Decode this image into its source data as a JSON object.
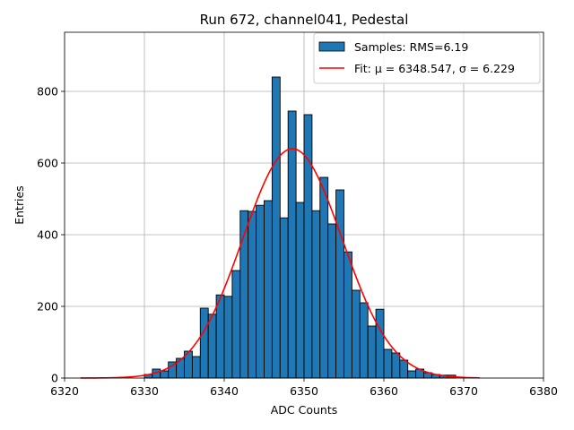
{
  "chart_data": {
    "type": "bar",
    "title": "Run 672, channel041, Pedestal",
    "xlabel": "ADC Counts",
    "ylabel": "Entries",
    "xlim": [
      6320,
      6380
    ],
    "ylim": [
      0,
      965
    ],
    "xticks": [
      6320,
      6330,
      6340,
      6350,
      6360,
      6370,
      6380
    ],
    "yticks": [
      0,
      200,
      400,
      600,
      800
    ],
    "grid": true,
    "legend_position": "top-right",
    "bar_color": "#1f77b4",
    "fit_color": "#ff0000",
    "histogram": {
      "name": "Samples: RMS=6.19",
      "bin_width": 1,
      "bins": [
        {
          "x": 6330,
          "y": 10
        },
        {
          "x": 6331,
          "y": 25
        },
        {
          "x": 6332,
          "y": 20
        },
        {
          "x": 6333,
          "y": 45
        },
        {
          "x": 6334,
          "y": 55
        },
        {
          "x": 6335,
          "y": 75
        },
        {
          "x": 6336,
          "y": 60
        },
        {
          "x": 6337,
          "y": 195
        },
        {
          "x": 6338,
          "y": 178
        },
        {
          "x": 6339,
          "y": 232
        },
        {
          "x": 6340,
          "y": 228
        },
        {
          "x": 6341,
          "y": 300
        },
        {
          "x": 6342,
          "y": 467
        },
        {
          "x": 6343,
          "y": 465
        },
        {
          "x": 6344,
          "y": 482
        },
        {
          "x": 6345,
          "y": 495
        },
        {
          "x": 6346,
          "y": 840
        },
        {
          "x": 6347,
          "y": 447
        },
        {
          "x": 6348,
          "y": 745
        },
        {
          "x": 6349,
          "y": 490
        },
        {
          "x": 6350,
          "y": 735
        },
        {
          "x": 6351,
          "y": 467
        },
        {
          "x": 6352,
          "y": 560
        },
        {
          "x": 6353,
          "y": 430
        },
        {
          "x": 6354,
          "y": 525
        },
        {
          "x": 6355,
          "y": 352
        },
        {
          "x": 6356,
          "y": 245
        },
        {
          "x": 6357,
          "y": 210
        },
        {
          "x": 6358,
          "y": 145
        },
        {
          "x": 6359,
          "y": 192
        },
        {
          "x": 6360,
          "y": 80
        },
        {
          "x": 6361,
          "y": 70
        },
        {
          "x": 6362,
          "y": 50
        },
        {
          "x": 6363,
          "y": 20
        },
        {
          "x": 6364,
          "y": 25
        },
        {
          "x": 6365,
          "y": 15
        },
        {
          "x": 6366,
          "y": 10
        },
        {
          "x": 6367,
          "y": 8
        },
        {
          "x": 6368,
          "y": 8
        }
      ]
    },
    "fit": {
      "name": "Fit: μ = 6348.547, σ = 6.229",
      "label_prefix": "Fit: ",
      "mu_label": "μ = 6348.547",
      "sigma_label": "σ = 6.229",
      "mu": 6348.547,
      "sigma": 6.229,
      "amplitude": 640,
      "x_range": [
        6322,
        6372
      ]
    }
  }
}
